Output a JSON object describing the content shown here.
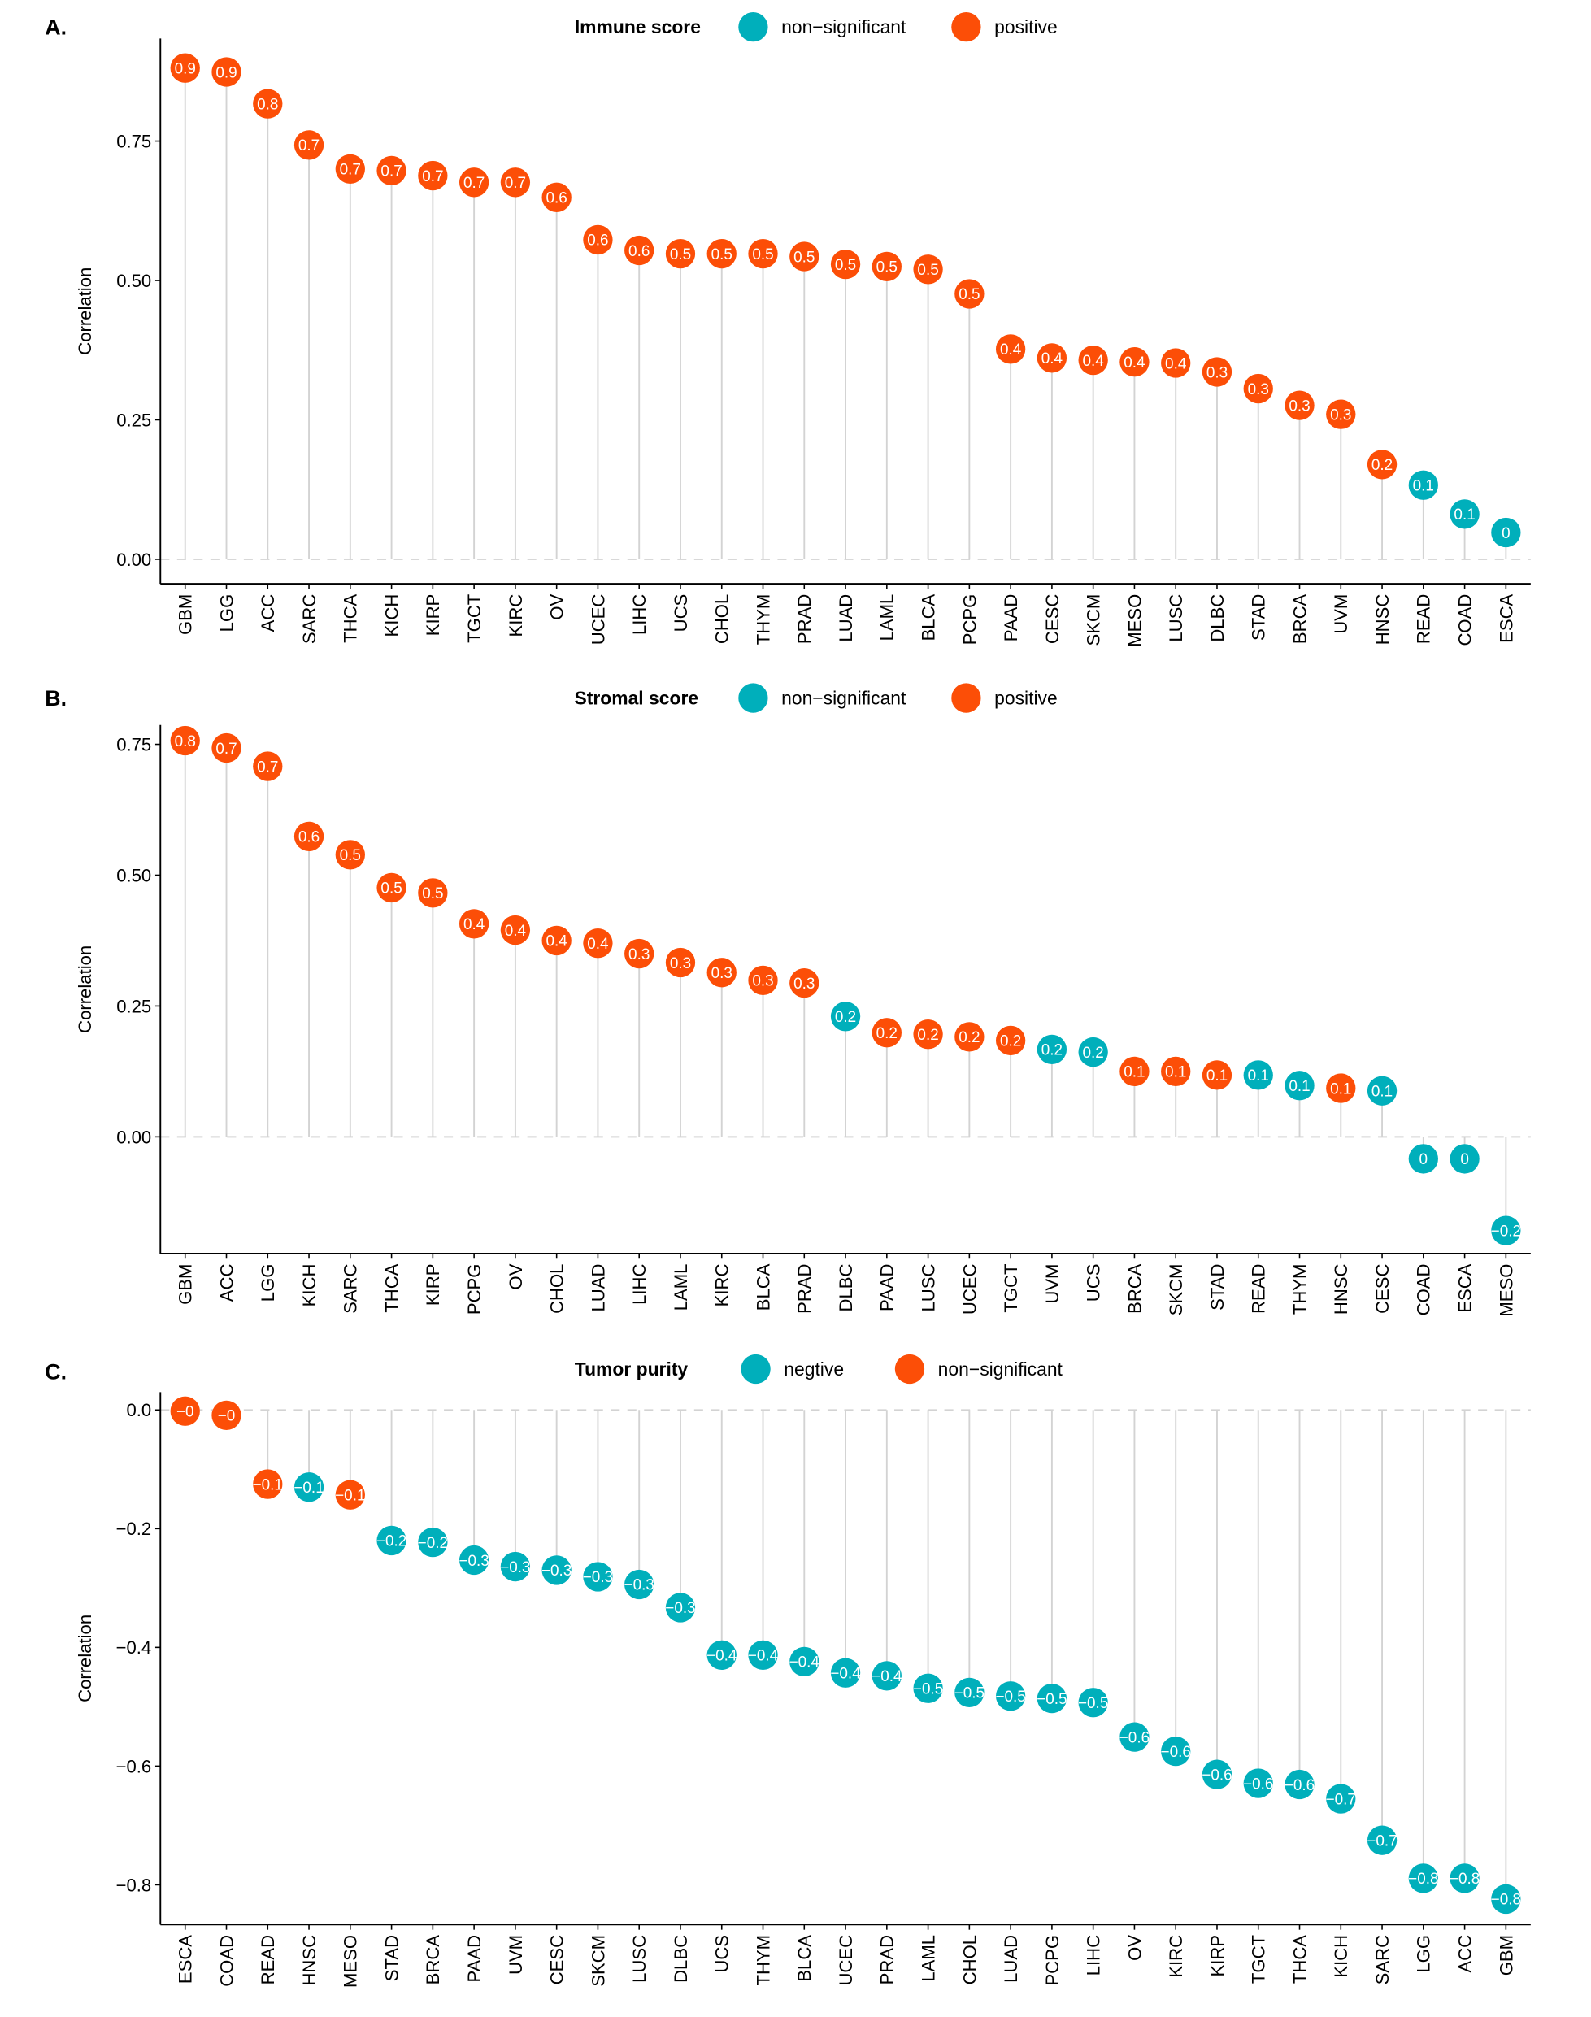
{
  "colors": {
    "teal": "#00AFBB",
    "orange": "#FC4E07",
    "segment": "#d3d3d3",
    "zero_line": "#d3d3d3"
  },
  "chart_data": [
    {
      "panel": "A.",
      "type": "lollipop",
      "legend_title": "Immune score",
      "legend": [
        {
          "label": "non−significant",
          "color": "teal"
        },
        {
          "label": "positive",
          "color": "orange"
        }
      ],
      "legend_position": "top",
      "ylabel": "Correlation",
      "xlabel": "",
      "ylim": [
        -0.044,
        0.934
      ],
      "yticks": [
        0,
        0.25,
        0.5,
        0.75
      ],
      "ytick_labels": [
        "0.00",
        "0.25",
        "0.50",
        "0.75"
      ],
      "categories": [
        "GBM",
        "LGG",
        "ACC",
        "SARC",
        "THCA",
        "KICH",
        "KIRP",
        "TGCT",
        "KIRC",
        "OV",
        "UCEC",
        "LIHC",
        "UCS",
        "CHOL",
        "THYM",
        "PRAD",
        "LUAD",
        "LAML",
        "BLCA",
        "PCPG",
        "PAAD",
        "CESC",
        "SKCM",
        "MESO",
        "LUSC",
        "DLBC",
        "STAD",
        "BRCA",
        "UVM",
        "HNSC",
        "READ",
        "COAD",
        "ESCA"
      ],
      "values": [
        0.881,
        0.874,
        0.817,
        0.743,
        0.7,
        0.697,
        0.688,
        0.676,
        0.676,
        0.649,
        0.573,
        0.554,
        0.548,
        0.548,
        0.548,
        0.543,
        0.529,
        0.525,
        0.52,
        0.476,
        0.377,
        0.361,
        0.357,
        0.354,
        0.352,
        0.336,
        0.306,
        0.276,
        0.26,
        0.17,
        0.133,
        0.081,
        0.048
      ],
      "labels": [
        "0.9",
        "0.9",
        "0.8",
        "0.7",
        "0.7",
        "0.7",
        "0.7",
        "0.7",
        "0.7",
        "0.6",
        "0.6",
        "0.6",
        "0.5",
        "0.5",
        "0.5",
        "0.5",
        "0.5",
        "0.5",
        "0.5",
        "0.5",
        "0.4",
        "0.4",
        "0.4",
        "0.4",
        "0.4",
        "0.3",
        "0.3",
        "0.3",
        "0.3",
        "0.2",
        "0.1",
        "0.1",
        "0"
      ],
      "groups": [
        "orange",
        "orange",
        "orange",
        "orange",
        "orange",
        "orange",
        "orange",
        "orange",
        "orange",
        "orange",
        "orange",
        "orange",
        "orange",
        "orange",
        "orange",
        "orange",
        "orange",
        "orange",
        "orange",
        "orange",
        "orange",
        "orange",
        "orange",
        "orange",
        "orange",
        "orange",
        "orange",
        "orange",
        "orange",
        "orange",
        "teal",
        "teal",
        "teal"
      ]
    },
    {
      "panel": "B.",
      "type": "lollipop",
      "legend_title": "Stromal score",
      "legend": [
        {
          "label": "non−significant",
          "color": "teal"
        },
        {
          "label": "positive",
          "color": "orange"
        }
      ],
      "legend_position": "top",
      "ylabel": "Correlation",
      "xlabel": "",
      "ylim": [
        -0.223,
        0.787
      ],
      "yticks": [
        0,
        0.25,
        0.5,
        0.75
      ],
      "ytick_labels": [
        "0.00",
        "0.25",
        "0.50",
        "0.75"
      ],
      "categories": [
        "GBM",
        "ACC",
        "LGG",
        "KICH",
        "SARC",
        "THCA",
        "KIRP",
        "PCPG",
        "OV",
        "CHOL",
        "LUAD",
        "LIHC",
        "LAML",
        "KIRC",
        "BLCA",
        "PRAD",
        "DLBC",
        "PAAD",
        "LUSC",
        "UCEC",
        "TGCT",
        "UVM",
        "UCS",
        "BRCA",
        "SKCM",
        "STAD",
        "READ",
        "THYM",
        "HNSC",
        "CESC",
        "COAD",
        "ESCA",
        "MESO"
      ],
      "values": [
        0.757,
        0.743,
        0.708,
        0.574,
        0.539,
        0.476,
        0.466,
        0.407,
        0.395,
        0.375,
        0.37,
        0.35,
        0.333,
        0.314,
        0.299,
        0.294,
        0.23,
        0.199,
        0.196,
        0.191,
        0.184,
        0.167,
        0.162,
        0.125,
        0.125,
        0.118,
        0.118,
        0.098,
        0.093,
        0.088,
        -0.042,
        -0.042,
        -0.179
      ],
      "labels": [
        "0.8",
        "0.7",
        "0.7",
        "0.6",
        "0.5",
        "0.5",
        "0.5",
        "0.4",
        "0.4",
        "0.4",
        "0.4",
        "0.3",
        "0.3",
        "0.3",
        "0.3",
        "0.3",
        "0.2",
        "0.2",
        "0.2",
        "0.2",
        "0.2",
        "0.2",
        "0.2",
        "0.1",
        "0.1",
        "0.1",
        "0.1",
        "0.1",
        "0.1",
        "0.1",
        "0",
        "0",
        "−0.2"
      ],
      "groups": [
        "orange",
        "orange",
        "orange",
        "orange",
        "orange",
        "orange",
        "orange",
        "orange",
        "orange",
        "orange",
        "orange",
        "orange",
        "orange",
        "orange",
        "orange",
        "orange",
        "teal",
        "orange",
        "orange",
        "orange",
        "orange",
        "teal",
        "teal",
        "orange",
        "orange",
        "orange",
        "teal",
        "teal",
        "orange",
        "teal",
        "teal",
        "teal",
        "teal"
      ]
    },
    {
      "panel": "C.",
      "type": "lollipop",
      "legend_title": "Tumor purity",
      "legend": [
        {
          "label": "negtive",
          "color": "teal"
        },
        {
          "label": "non−significant",
          "color": "orange"
        }
      ],
      "legend_position": "top",
      "ylabel": "Correlation",
      "xlabel": "",
      "ylim": [
        -0.867,
        0.03
      ],
      "yticks": [
        0,
        -0.2,
        -0.4,
        -0.6,
        -0.8
      ],
      "ytick_labels": [
        "0.0",
        "−0.2",
        "−0.4",
        "−0.6",
        "−0.8"
      ],
      "categories": [
        "ESCA",
        "COAD",
        "READ",
        "HNSC",
        "MESO",
        "STAD",
        "BRCA",
        "PAAD",
        "UVM",
        "CESC",
        "SKCM",
        "LUSC",
        "DLBC",
        "UCS",
        "THYM",
        "BLCA",
        "UCEC",
        "PRAD",
        "LAML",
        "CHOL",
        "LUAD",
        "PCPG",
        "LIHC",
        "OV",
        "KIRC",
        "KIRP",
        "TGCT",
        "THCA",
        "KICH",
        "SARC",
        "LGG",
        "ACC",
        "GBM"
      ],
      "values": [
        -0.002,
        -0.009,
        -0.125,
        -0.13,
        -0.143,
        -0.22,
        -0.223,
        -0.253,
        -0.264,
        -0.27,
        -0.281,
        -0.294,
        -0.333,
        -0.413,
        -0.413,
        -0.424,
        -0.443,
        -0.448,
        -0.469,
        -0.476,
        -0.482,
        -0.486,
        -0.493,
        -0.551,
        -0.575,
        -0.614,
        -0.629,
        -0.631,
        -0.655,
        -0.725,
        -0.789,
        -0.789,
        -0.824
      ],
      "labels": [
        "−0",
        "−0",
        "−0.1",
        "−0.1",
        "−0.1",
        "−0.2",
        "−0.2",
        "−0.3",
        "−0.3",
        "−0.3",
        "−0.3",
        "−0.3",
        "−0.3",
        "−0.4",
        "−0.4",
        "−0.4",
        "−0.4",
        "−0.4",
        "−0.5",
        "−0.5",
        "−0.5",
        "−0.5",
        "−0.5",
        "−0.6",
        "−0.6",
        "−0.6",
        "−0.6",
        "−0.6",
        "−0.7",
        "−0.7",
        "−0.8",
        "−0.8",
        "−0.8"
      ],
      "groups": [
        "orange",
        "orange",
        "orange",
        "teal",
        "orange",
        "teal",
        "teal",
        "teal",
        "teal",
        "teal",
        "teal",
        "teal",
        "teal",
        "teal",
        "teal",
        "teal",
        "teal",
        "teal",
        "teal",
        "teal",
        "teal",
        "teal",
        "teal",
        "teal",
        "teal",
        "teal",
        "teal",
        "teal",
        "teal",
        "teal",
        "teal",
        "teal",
        "teal"
      ]
    }
  ]
}
